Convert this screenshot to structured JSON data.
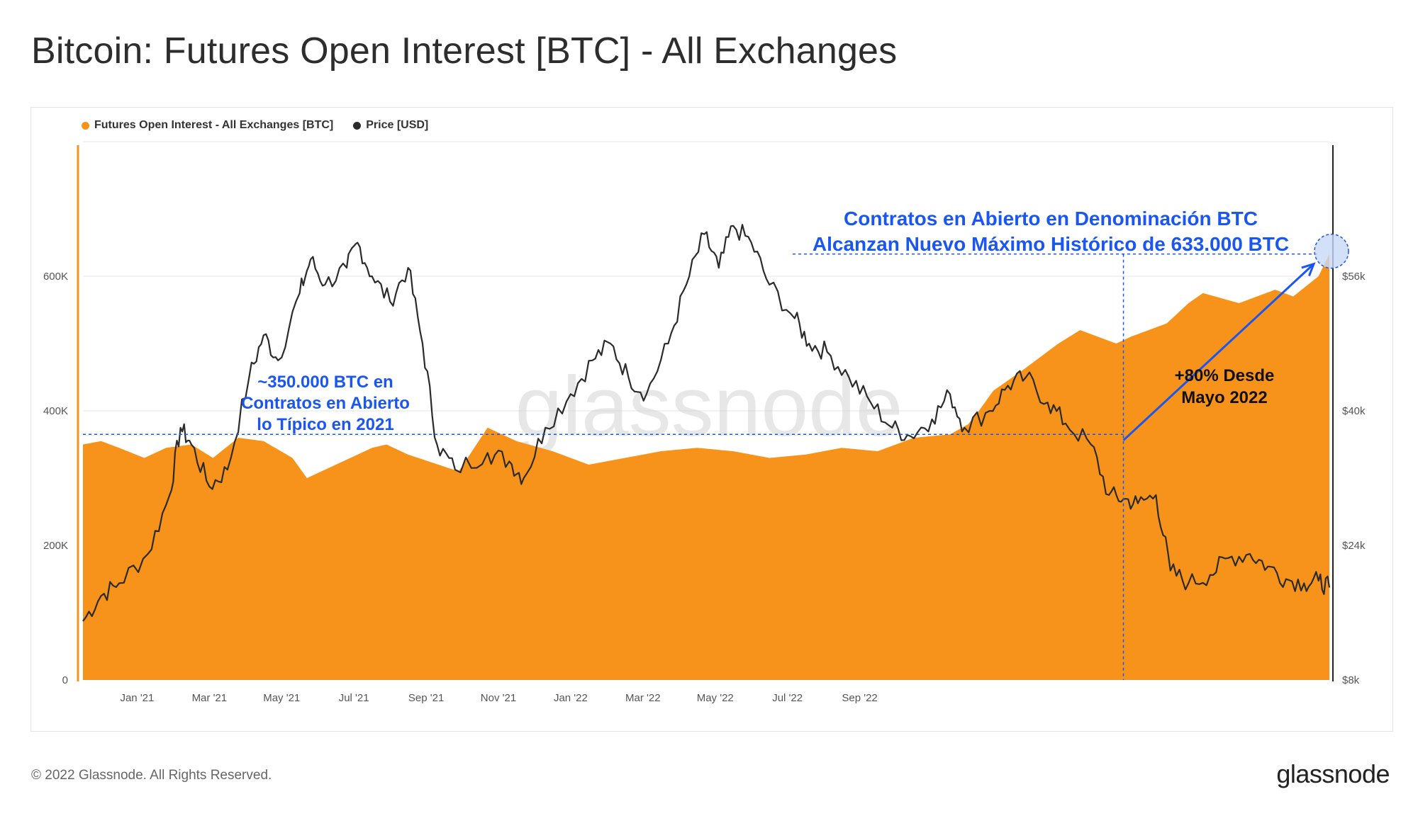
{
  "title": "Bitcoin: Futures Open Interest [BTC] - All Exchanges",
  "footer": {
    "copyright": "© 2022 Glassnode. All Rights Reserved.",
    "logo": "glassnode"
  },
  "watermark": "glassnode",
  "colors": {
    "oi": "#f7931a",
    "price": "#2b2b2b",
    "annotation": "#1a56f0",
    "grid": "#e6e6e6"
  },
  "chart_data": {
    "type": "area",
    "title": "Bitcoin: Futures Open Interest [BTC] - All Exchanges",
    "legend": [
      {
        "name": "Futures Open Interest - All Exchanges [BTC]",
        "color": "#f7931a"
      },
      {
        "name": "Price [USD]",
        "color": "#2b2b2b"
      }
    ],
    "x_ticks": [
      "Jan '21",
      "Mar '21",
      "May '21",
      "Jul '21",
      "Sep '21",
      "Nov '21",
      "Jan '22",
      "Mar '22",
      "May '22",
      "Jul '22",
      "Sep '22"
    ],
    "x_range_months": [
      0,
      34.5
    ],
    "y_left": {
      "ticks": [
        "0",
        "200K",
        "400K",
        "600K"
      ],
      "ylim": [
        0,
        800000
      ]
    },
    "y_right": {
      "ticks": [
        "$8k",
        "$24k",
        "$40k",
        "$56k"
      ],
      "ylim": [
        8000,
        72000
      ]
    },
    "series": [
      {
        "name": "Futures Open Interest - All Exchanges [BTC]",
        "type": "area",
        "points": [
          [
            0,
            350000
          ],
          [
            0.5,
            355000
          ],
          [
            1,
            345000
          ],
          [
            1.7,
            330000
          ],
          [
            2.3,
            345000
          ],
          [
            3,
            350000
          ],
          [
            3.6,
            330000
          ],
          [
            4.3,
            360000
          ],
          [
            5,
            355000
          ],
          [
            5.8,
            330000
          ],
          [
            6.2,
            300000
          ],
          [
            7,
            320000
          ],
          [
            8,
            345000
          ],
          [
            8.4,
            350000
          ],
          [
            9,
            335000
          ],
          [
            10.4,
            310000
          ],
          [
            11.2,
            375000
          ],
          [
            12,
            355000
          ],
          [
            13,
            340000
          ],
          [
            14,
            320000
          ],
          [
            15,
            330000
          ],
          [
            16,
            340000
          ],
          [
            17,
            345000
          ],
          [
            18,
            340000
          ],
          [
            19,
            330000
          ],
          [
            20,
            335000
          ],
          [
            21,
            345000
          ],
          [
            22,
            340000
          ],
          [
            23,
            360000
          ],
          [
            24,
            365000
          ],
          [
            24.5,
            380000
          ],
          [
            24.8,
            400000
          ],
          [
            25.2,
            430000
          ],
          [
            26,
            460000
          ],
          [
            27,
            500000
          ],
          [
            27.6,
            520000
          ],
          [
            28.6,
            500000
          ],
          [
            29,
            510000
          ],
          [
            30,
            530000
          ],
          [
            30.6,
            560000
          ],
          [
            31,
            575000
          ],
          [
            32,
            560000
          ],
          [
            33,
            580000
          ],
          [
            33.5,
            570000
          ],
          [
            34.2,
            600000
          ],
          [
            34.5,
            633000
          ]
        ]
      },
      {
        "name": "Price [USD]",
        "type": "line",
        "points": [
          [
            0,
            15000
          ],
          [
            0.5,
            18000
          ],
          [
            1,
            19500
          ],
          [
            1.8,
            23000
          ],
          [
            2.4,
            30000
          ],
          [
            2.7,
            38000
          ],
          [
            3,
            36000
          ],
          [
            3.5,
            31000
          ],
          [
            4,
            33000
          ],
          [
            4.6,
            44000
          ],
          [
            5,
            49000
          ],
          [
            5.4,
            46000
          ],
          [
            6,
            54000
          ],
          [
            6.3,
            58000
          ],
          [
            6.7,
            55000
          ],
          [
            7.3,
            57000
          ],
          [
            7.6,
            60000
          ],
          [
            8,
            56000
          ],
          [
            8.5,
            53000
          ],
          [
            9,
            57000
          ],
          [
            9.4,
            48000
          ],
          [
            9.8,
            36000
          ],
          [
            10.3,
            33000
          ],
          [
            11.2,
            35000
          ],
          [
            11.8,
            34000
          ],
          [
            12.2,
            32000
          ],
          [
            12.8,
            38000
          ],
          [
            13.5,
            42000
          ],
          [
            14.1,
            46000
          ],
          [
            14.6,
            48000
          ],
          [
            15.1,
            44000
          ],
          [
            15.6,
            42000
          ],
          [
            16.2,
            48000
          ],
          [
            16.7,
            55000
          ],
          [
            17.2,
            61000
          ],
          [
            17.6,
            57000
          ],
          [
            18,
            62000
          ],
          [
            18.5,
            60000
          ],
          [
            19,
            55000
          ],
          [
            19.7,
            51000
          ],
          [
            20.1,
            48000
          ],
          [
            20.6,
            47000
          ],
          [
            21.2,
            44000
          ],
          [
            21.8,
            41000
          ],
          [
            22.4,
            38000
          ],
          [
            22.9,
            37000
          ],
          [
            23.5,
            39000
          ],
          [
            24,
            42000
          ],
          [
            24.4,
            38000
          ],
          [
            25.1,
            40000
          ],
          [
            25.6,
            43000
          ],
          [
            26.1,
            44000
          ],
          [
            26.7,
            41000
          ],
          [
            27.2,
            38500
          ],
          [
            27.9,
            36000
          ],
          [
            28.4,
            30000
          ],
          [
            28.8,
            29500
          ],
          [
            29.2,
            29000
          ],
          [
            29.7,
            30000
          ],
          [
            30.1,
            21000
          ],
          [
            30.6,
            19500
          ],
          [
            31.2,
            20500
          ],
          [
            31.7,
            22500
          ],
          [
            32.3,
            23000
          ],
          [
            32.8,
            21500
          ],
          [
            33.3,
            20000
          ],
          [
            33.8,
            19500
          ],
          [
            34.2,
            19800
          ],
          [
            34.5,
            19000
          ]
        ]
      }
    ],
    "annotations": {
      "left_note": [
        "~350.000 BTC en",
        "Contratos en Abierto",
        "lo Típico en 2021"
      ],
      "top_note": [
        "Contratos en Abierto en Denominación BTC",
        "Alcanzan Nuevo Máximo Histórico de 633.000 BTC"
      ],
      "right_note": [
        "+80% Desde",
        "Mayo 2022"
      ],
      "typical_level": 365000,
      "ath_level": 633000,
      "may22_month": 28.8
    }
  }
}
